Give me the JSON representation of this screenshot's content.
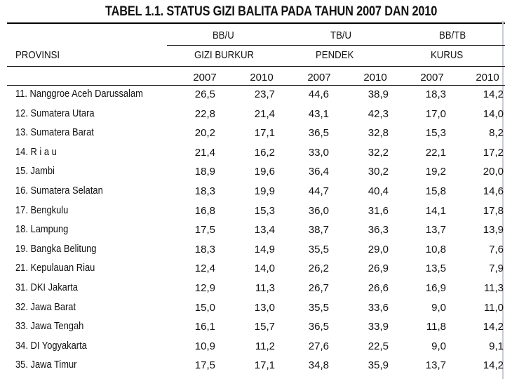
{
  "title": "TABEL 1.1. STATUS GIZI BALITA PADA TAHUN 2007 DAN 2010",
  "header": {
    "provinsi": "PROVINSI",
    "groups": [
      {
        "index": "BB/U",
        "label": "GIZI BURKUR"
      },
      {
        "index": "TB/U",
        "label": "PENDEK"
      },
      {
        "index": "BB/TB",
        "label": "KURUS"
      }
    ],
    "years": [
      "2007",
      "2010",
      "2007",
      "2010",
      "2007",
      "2010"
    ]
  },
  "rows": [
    {
      "provinsi": "11. Nanggroe Aceh Darussalam",
      "values": [
        "26,5",
        "23,7",
        "44,6",
        "38,9",
        "18,3",
        "14,2"
      ]
    },
    {
      "provinsi": "12. Sumatera Utara",
      "values": [
        "22,8",
        "21,4",
        "43,1",
        "42,3",
        "17,0",
        "14,0"
      ]
    },
    {
      "provinsi": "13. Sumatera Barat",
      "values": [
        "20,2",
        "17,1",
        "36,5",
        "32,8",
        "15,3",
        "8,2"
      ]
    },
    {
      "provinsi": "14. R i a u",
      "values": [
        "21,4",
        "16,2",
        "33,0",
        "32,2",
        "22,1",
        "17,2"
      ]
    },
    {
      "provinsi": "15. Jambi",
      "values": [
        "18,9",
        "19,6",
        "36,4",
        "30,2",
        "19,2",
        "20,0"
      ]
    },
    {
      "provinsi": "16. Sumatera Selatan",
      "values": [
        "18,3",
        "19,9",
        "44,7",
        "40,4",
        "15,8",
        "14,6"
      ]
    },
    {
      "provinsi": "17. Bengkulu",
      "values": [
        "16,8",
        "15,3",
        "36,0",
        "31,6",
        "14,1",
        "17,8"
      ]
    },
    {
      "provinsi": "18. Lampung",
      "values": [
        "17,5",
        "13,4",
        "38,7",
        "36,3",
        "13,7",
        "13,9"
      ]
    },
    {
      "provinsi": "19. Bangka Belitung",
      "values": [
        "18,3",
        "14,9",
        "35,5",
        "29,0",
        "10,8",
        "7,6"
      ]
    },
    {
      "provinsi": "21. Kepulauan Riau",
      "values": [
        "12,4",
        "14,0",
        "26,2",
        "26,9",
        "13,5",
        "7,9"
      ]
    },
    {
      "provinsi": "31. DKI Jakarta",
      "values": [
        "12,9",
        "11,3",
        "26,7",
        "26,6",
        "16,9",
        "11,3"
      ]
    },
    {
      "provinsi": "32. Jawa Barat",
      "values": [
        "15,0",
        "13,0",
        "35,5",
        "33,6",
        "9,0",
        "11,0"
      ]
    },
    {
      "provinsi": "33. Jawa Tengah",
      "values": [
        "16,1",
        "15,7",
        "36,5",
        "33,9",
        "11,8",
        "14,2"
      ]
    },
    {
      "provinsi": "34. DI Yogyakarta",
      "values": [
        "10,9",
        "11,2",
        "27,6",
        "22,5",
        "9,0",
        "9,1"
      ]
    },
    {
      "provinsi": "35. Jawa Timur",
      "values": [
        "17,5",
        "17,1",
        "34,8",
        "35,9",
        "13,7",
        "14,2"
      ]
    }
  ]
}
